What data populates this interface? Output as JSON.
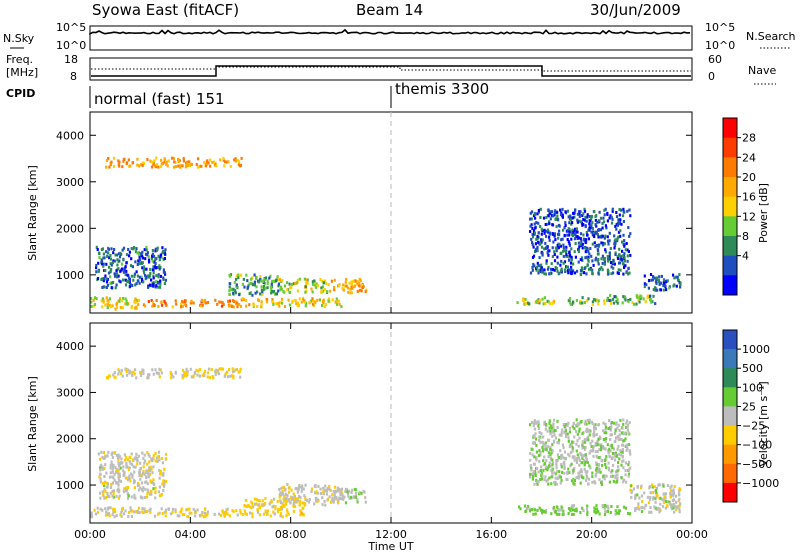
{
  "header": {
    "station": "Syowa East (fitACF)",
    "beam": "Beam 14",
    "date": "30/Jun/2009"
  },
  "panels": {
    "nsky": {
      "label": "N.Sky",
      "right_label": "N.Search",
      "ticks_left": [
        "10^5",
        "10^0"
      ],
      "ticks_right": [
        "10^5",
        "10^0"
      ]
    },
    "freq": {
      "label_top": "Freq.",
      "label_bottom": "[MHz]",
      "right_label": "Nave",
      "ticks_left": [
        "18",
        "8"
      ],
      "ticks_right": [
        "60",
        "0"
      ]
    },
    "cpid": {
      "label": "CPID",
      "modes": [
        {
          "name": "normal (fast) 151",
          "start_hour": 0
        },
        {
          "name": "themis 3300",
          "start_hour": 12
        }
      ]
    }
  },
  "colorbars": {
    "power": {
      "title": "Power [dB]",
      "ticks": [
        "28",
        "24",
        "20",
        "16",
        "12",
        "8",
        "4"
      ],
      "colors": [
        "#0000ff",
        "#1f4fbf",
        "#2e8b57",
        "#66cc33",
        "#ffd000",
        "#ffaa00",
        "#ff7a00",
        "#ff3c00",
        "#ff0000"
      ]
    },
    "velocity": {
      "title": "Velocity [m s⁻¹]",
      "ticks": [
        "1000",
        "500",
        "100",
        "25",
        "−25",
        "−100",
        "−500",
        "−1000"
      ],
      "colors": [
        "#2a4fbf",
        "#3a7ab8",
        "#2e8b57",
        "#66cc33",
        "#bdbdbd",
        "#ffcc00",
        "#ff9900",
        "#ff6a00",
        "#ff0000"
      ]
    }
  },
  "axes": {
    "xlabel": "Time UT",
    "x_ticks": [
      "00:00",
      "04:00",
      "08:00",
      "12:00",
      "16:00",
      "20:00",
      "00:00"
    ],
    "ylabel": "Slant Range [km]",
    "y_ticks": [
      "4000",
      "3000",
      "2000",
      "1000"
    ]
  },
  "chart_data": [
    {
      "type": "heatmap",
      "title": "Power",
      "xlabel": "Time UT",
      "ylabel": "Slant Range [km]",
      "xlim": [
        0,
        24
      ],
      "ylim": [
        180,
        4500
      ],
      "colorbar": "Power [dB]",
      "clim": [
        0,
        32
      ],
      "patches": [
        {
          "t": [
            0.0,
            2.0
          ],
          "r": [
            250,
            500
          ],
          "v": 16
        },
        {
          "t": [
            2.0,
            6.0
          ],
          "r": [
            300,
            450
          ],
          "v": 22
        },
        {
          "t": [
            6.0,
            10.0
          ],
          "r": [
            300,
            480
          ],
          "v": 18
        },
        {
          "t": [
            5.5,
            7.5
          ],
          "r": [
            550,
            1000
          ],
          "v": 10
        },
        {
          "t": [
            7.5,
            9.5
          ],
          "r": [
            600,
            900
          ],
          "v": 14
        },
        {
          "t": [
            9.5,
            11.0
          ],
          "r": [
            600,
            900
          ],
          "v": 20
        },
        {
          "t": [
            0.2,
            3.0
          ],
          "r": [
            700,
            1600
          ],
          "v": 6
        },
        {
          "t": [
            17.0,
            18.5
          ],
          "r": [
            350,
            500
          ],
          "v": 14
        },
        {
          "t": [
            19.0,
            21.0
          ],
          "r": [
            350,
            500
          ],
          "v": 12
        },
        {
          "t": [
            20.5,
            22.5
          ],
          "r": [
            350,
            550
          ],
          "v": 10
        },
        {
          "t": [
            17.5,
            21.5
          ],
          "r": [
            1000,
            2400
          ],
          "v": 5
        },
        {
          "t": [
            22.0,
            23.5
          ],
          "r": [
            650,
            1000
          ],
          "v": 6
        },
        {
          "t": [
            0.6,
            6.0
          ],
          "r": [
            3300,
            3500
          ],
          "v": 20
        }
      ]
    },
    {
      "type": "heatmap",
      "title": "Velocity",
      "xlabel": "Time UT",
      "ylabel": "Slant Range [km]",
      "xlim": [
        0,
        24
      ],
      "ylim": [
        180,
        4500
      ],
      "colorbar": "Velocity [m s⁻¹]",
      "clim": [
        -1000,
        1000
      ],
      "patches": [
        {
          "t": [
            0.0,
            3.0
          ],
          "r": [
            300,
            500
          ],
          "v": -80
        },
        {
          "t": [
            3.0,
            6.0
          ],
          "r": [
            300,
            480
          ],
          "v": -150
        },
        {
          "t": [
            6.0,
            8.5
          ],
          "r": [
            300,
            700
          ],
          "v": -200
        },
        {
          "t": [
            7.5,
            10.0
          ],
          "r": [
            550,
            1000
          ],
          "v": -60
        },
        {
          "t": [
            9.5,
            11.0
          ],
          "r": [
            600,
            900
          ],
          "v": 40
        },
        {
          "t": [
            0.3,
            3.0
          ],
          "r": [
            700,
            1700
          ],
          "v": -30
        },
        {
          "t": [
            17.0,
            19.0
          ],
          "r": [
            350,
            550
          ],
          "v": 150
        },
        {
          "t": [
            19.0,
            21.5
          ],
          "r": [
            350,
            550
          ],
          "v": 180
        },
        {
          "t": [
            21.5,
            23.5
          ],
          "r": [
            400,
            1000
          ],
          "v": -10
        },
        {
          "t": [
            17.5,
            21.5
          ],
          "r": [
            1000,
            2400
          ],
          "v": 60
        },
        {
          "t": [
            0.6,
            6.0
          ],
          "r": [
            3300,
            3500
          ],
          "v": -120
        }
      ]
    }
  ]
}
